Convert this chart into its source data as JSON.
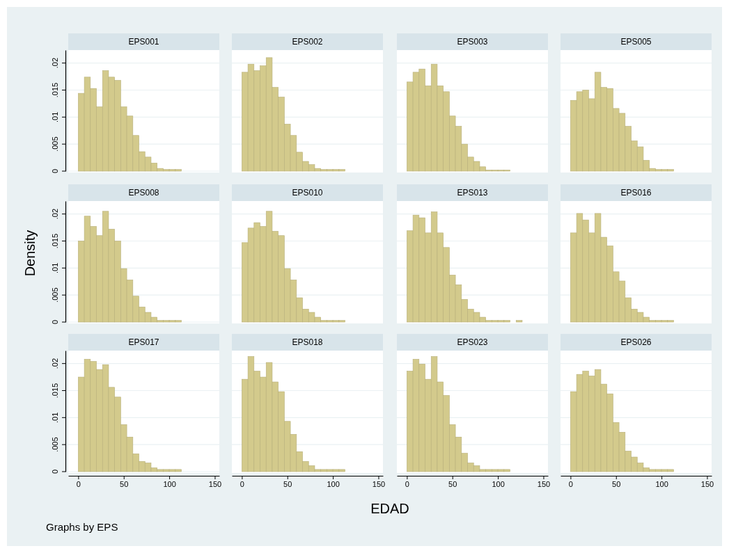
{
  "chart_data": [
    {
      "type": "histogram",
      "title": "EPS001",
      "bins": [
        0,
        6.67,
        13.33,
        20,
        26.67,
        33.33,
        40,
        46.67,
        53.33,
        60,
        66.67,
        73.33,
        80,
        86.67,
        93.33,
        100,
        106.67,
        113.33,
        120,
        126.67
      ],
      "values": [
        0.0144,
        0.0174,
        0.0153,
        0.0119,
        0.0186,
        0.0174,
        0.0168,
        0.0119,
        0.0102,
        0.0066,
        0.0036,
        0.0026,
        0.0015,
        0.0005,
        0.0003,
        0.0003,
        0.0003,
        0,
        0
      ],
      "color": "#d3ca8c",
      "xlim": [
        -11,
        155
      ],
      "ylim": [
        0,
        0.0224
      ],
      "xticks": [
        0,
        50,
        100,
        150
      ],
      "yticks": [
        0,
        {
          "value": 0.005,
          "label": ".005"
        },
        {
          "value": 0.01,
          "label": ".01"
        },
        {
          "value": 0.015,
          "label": ".015"
        },
        {
          "value": 0.02,
          "label": ".02"
        }
      ],
      "grid": "y",
      "tick_labels": "y"
    },
    {
      "type": "histogram",
      "title": "EPS002",
      "bins": [
        0,
        6.67,
        13.33,
        20,
        26.67,
        33.33,
        40,
        46.67,
        53.33,
        60,
        66.67,
        73.33,
        80,
        86.67,
        93.33,
        100,
        106.67,
        113.33,
        120,
        126.67
      ],
      "values": [
        0.0183,
        0.0198,
        0.0186,
        0.0195,
        0.021,
        0.0155,
        0.0137,
        0.0087,
        0.0066,
        0.0035,
        0.0018,
        0.0012,
        0.0005,
        0.0003,
        0.0003,
        0.0003,
        0.0003,
        0,
        0
      ],
      "color": "#d3ca8c",
      "xlim": [
        -11,
        155
      ],
      "ylim": [
        0,
        0.0224
      ],
      "xticks": [
        0,
        50,
        100,
        150
      ],
      "yticks": [
        0.005,
        0.01,
        0.015,
        0.02
      ],
      "grid": "y",
      "tick_labels": false
    },
    {
      "type": "histogram",
      "title": "EPS003",
      "bins": [
        0,
        6.67,
        13.33,
        20,
        26.67,
        33.33,
        40,
        46.67,
        53.33,
        60,
        66.67,
        73.33,
        80,
        86.67,
        93.33,
        100,
        106.67,
        113.33,
        120,
        126.67
      ],
      "values": [
        0.0165,
        0.0183,
        0.0189,
        0.0158,
        0.0198,
        0.0158,
        0.0147,
        0.0102,
        0.0083,
        0.005,
        0.0026,
        0.0018,
        0.0008,
        0.0002,
        0.0002,
        0.0002,
        0.0002,
        0,
        0
      ],
      "color": "#d3ca8c",
      "xlim": [
        -11,
        155
      ],
      "ylim": [
        0,
        0.0224
      ],
      "xticks": [
        0,
        50,
        100,
        150
      ],
      "yticks": [
        0.005,
        0.01,
        0.015,
        0.02
      ],
      "grid": "y",
      "tick_labels": false
    },
    {
      "type": "histogram",
      "title": "EPS005",
      "bins": [
        0,
        6.67,
        13.33,
        20,
        26.67,
        33.33,
        40,
        46.67,
        53.33,
        60,
        66.67,
        73.33,
        80,
        86.67,
        93.33,
        100,
        106.67,
        113.33,
        120,
        126.67
      ],
      "values": [
        0.0131,
        0.0147,
        0.015,
        0.0134,
        0.0183,
        0.0155,
        0.0153,
        0.0116,
        0.0107,
        0.0083,
        0.0056,
        0.0045,
        0.002,
        0.0005,
        0.0003,
        0.0003,
        0.0003,
        0,
        0
      ],
      "color": "#d3ca8c",
      "xlim": [
        -11,
        155
      ],
      "ylim": [
        0,
        0.0224
      ],
      "xticks": [
        0,
        50,
        100,
        150
      ],
      "yticks": [
        0.005,
        0.01,
        0.015,
        0.02
      ],
      "grid": "y",
      "tick_labels": false
    },
    {
      "type": "histogram",
      "title": "EPS008",
      "ylabel": "Density",
      "bins": [
        0,
        6.67,
        13.33,
        20,
        26.67,
        33.33,
        40,
        46.67,
        53.33,
        60,
        66.67,
        73.33,
        80,
        86.67,
        93.33,
        100,
        106.67,
        113.33,
        120,
        126.67
      ],
      "values": [
        0.015,
        0.0196,
        0.0177,
        0.016,
        0.0205,
        0.0172,
        0.015,
        0.0099,
        0.0078,
        0.0048,
        0.0028,
        0.0018,
        0.0009,
        0.0003,
        0.0003,
        0.0003,
        0.0003,
        0,
        0
      ],
      "color": "#d3ca8c",
      "xlim": [
        -11,
        155
      ],
      "ylim": [
        0,
        0.0224
      ],
      "xticks": [
        0,
        50,
        100,
        150
      ],
      "yticks": [
        0,
        {
          "value": 0.005,
          "label": ".005"
        },
        {
          "value": 0.01,
          "label": ".01"
        },
        {
          "value": 0.015,
          "label": ".015"
        },
        {
          "value": 0.02,
          "label": ".02"
        }
      ],
      "grid": "y",
      "tick_labels": "y"
    },
    {
      "type": "histogram",
      "title": "EPS010",
      "bins": [
        0,
        6.67,
        13.33,
        20,
        26.67,
        33.33,
        40,
        46.67,
        53.33,
        60,
        66.67,
        73.33,
        80,
        86.67,
        93.33,
        100,
        106.67,
        113.33,
        120,
        126.67
      ],
      "values": [
        0.0147,
        0.0174,
        0.0184,
        0.0177,
        0.0205,
        0.0168,
        0.016,
        0.0099,
        0.0078,
        0.0045,
        0.0024,
        0.0018,
        0.0009,
        0.0003,
        0.0003,
        0.0003,
        0.0003,
        0,
        0
      ],
      "color": "#d3ca8c",
      "xlim": [
        -11,
        155
      ],
      "ylim": [
        0,
        0.0224
      ],
      "xticks": [
        0,
        50,
        100,
        150
      ],
      "yticks": [
        0.005,
        0.01,
        0.015,
        0.02
      ],
      "grid": "y",
      "tick_labels": false
    },
    {
      "type": "histogram",
      "title": "EPS013",
      "bins": [
        0,
        6.67,
        13.33,
        20,
        26.67,
        33.33,
        40,
        46.67,
        53.33,
        60,
        66.67,
        73.33,
        80,
        86.67,
        93.33,
        100,
        106.67,
        113.33,
        120,
        126.67
      ],
      "values": [
        0.0169,
        0.0198,
        0.0193,
        0.0165,
        0.0204,
        0.0165,
        0.0138,
        0.0087,
        0.0069,
        0.0042,
        0.0024,
        0.0018,
        0.0009,
        0.0003,
        0.0003,
        0.0003,
        0.0003,
        0,
        0.0003
      ],
      "color": "#d3ca8c",
      "xlim": [
        -11,
        155
      ],
      "ylim": [
        0,
        0.0224
      ],
      "xticks": [
        0,
        50,
        100,
        150
      ],
      "yticks": [
        0.005,
        0.01,
        0.015,
        0.02
      ],
      "grid": "y",
      "tick_labels": false
    },
    {
      "type": "histogram",
      "title": "EPS016",
      "bins": [
        0,
        6.67,
        13.33,
        20,
        26.67,
        33.33,
        40,
        46.67,
        53.33,
        60,
        66.67,
        73.33,
        80,
        86.67,
        93.33,
        100,
        106.67,
        113.33,
        120,
        126.67
      ],
      "values": [
        0.0165,
        0.0201,
        0.0189,
        0.0165,
        0.0201,
        0.0157,
        0.0141,
        0.0093,
        0.0076,
        0.0045,
        0.0024,
        0.0018,
        0.0009,
        0.0003,
        0.0003,
        0.0003,
        0.0003,
        0,
        0
      ],
      "color": "#d3ca8c",
      "xlim": [
        -11,
        155
      ],
      "ylim": [
        0,
        0.0224
      ],
      "xticks": [
        0,
        50,
        100,
        150
      ],
      "yticks": [
        0.005,
        0.01,
        0.015,
        0.02
      ],
      "grid": "y",
      "tick_labels": false
    },
    {
      "type": "histogram",
      "title": "EPS017",
      "annotations": [
        "Graphs by EPS"
      ],
      "bins": [
        0,
        6.67,
        13.33,
        20,
        26.67,
        33.33,
        40,
        46.67,
        53.33,
        60,
        66.67,
        73.33,
        80,
        86.67,
        93.33,
        100,
        106.67,
        113.33,
        120,
        126.67
      ],
      "values": [
        0.0175,
        0.0208,
        0.0204,
        0.0189,
        0.0198,
        0.0156,
        0.0138,
        0.0087,
        0.0064,
        0.0033,
        0.0019,
        0.0016,
        0.0007,
        0.0004,
        0.0004,
        0.0004,
        0.0004,
        0,
        0
      ],
      "color": "#d3ca8c",
      "xlim": [
        -11,
        155
      ],
      "ylim": [
        0,
        0.0224
      ],
      "xticks": [
        0,
        50,
        100,
        150
      ],
      "yticks": [
        0,
        {
          "value": 0.005,
          "label": ".005"
        },
        {
          "value": 0.01,
          "label": ".01"
        },
        {
          "value": 0.015,
          "label": ".015"
        },
        {
          "value": 0.02,
          "label": ".02"
        }
      ],
      "grid": "y"
    },
    {
      "type": "histogram",
      "title": "EPS018",
      "bins": [
        0,
        6.67,
        13.33,
        20,
        26.67,
        33.33,
        40,
        46.67,
        53.33,
        60,
        66.67,
        73.33,
        80,
        86.67,
        93.33,
        100,
        106.67,
        113.33,
        120,
        126.67
      ],
      "values": [
        0.0171,
        0.0213,
        0.0186,
        0.0175,
        0.0202,
        0.0166,
        0.0148,
        0.0093,
        0.0069,
        0.0037,
        0.0019,
        0.0011,
        0.0004,
        0.0004,
        0.0004,
        0.0004,
        0.0004,
        0,
        0
      ],
      "color": "#d3ca8c",
      "xlim": [
        -11,
        155
      ],
      "ylim": [
        0,
        0.0224
      ],
      "xticks": [
        0,
        50,
        100,
        150
      ],
      "yticks": [
        0.005,
        0.01,
        0.015,
        0.02
      ],
      "grid": "y",
      "tick_labels": "x"
    },
    {
      "type": "histogram",
      "title": "EPS023",
      "xlabel": "EDAD",
      "bins": [
        0,
        6.67,
        13.33,
        20,
        26.67,
        33.33,
        40,
        46.67,
        53.33,
        60,
        66.67,
        73.33,
        80,
        86.67,
        93.33,
        100,
        106.67,
        113.33,
        120,
        126.67
      ],
      "values": [
        0.0186,
        0.0208,
        0.0199,
        0.0171,
        0.0213,
        0.0166,
        0.0141,
        0.0087,
        0.0064,
        0.0034,
        0.0016,
        0.0011,
        0.0004,
        0.0004,
        0.0004,
        0.0004,
        0.0004,
        0,
        0
      ],
      "color": "#d3ca8c",
      "xlim": [
        -11,
        155
      ],
      "ylim": [
        0,
        0.0224
      ],
      "xticks": [
        0,
        50,
        100,
        150
      ],
      "yticks": [
        0.005,
        0.01,
        0.015,
        0.02
      ],
      "grid": "y",
      "tick_labels": "x"
    },
    {
      "type": "histogram",
      "title": "EPS026",
      "bins": [
        0,
        6.67,
        13.33,
        20,
        26.67,
        33.33,
        40,
        46.67,
        53.33,
        60,
        66.67,
        73.33,
        80,
        86.67,
        93.33,
        100,
        106.67,
        113.33,
        120,
        126.67
      ],
      "values": [
        0.0148,
        0.018,
        0.0186,
        0.0177,
        0.0189,
        0.0162,
        0.0144,
        0.0091,
        0.0073,
        0.0038,
        0.0027,
        0.0016,
        0.0007,
        0.0004,
        0.0004,
        0.0004,
        0.0004,
        0,
        0
      ],
      "color": "#d3ca8c",
      "xlim": [
        -11,
        155
      ],
      "ylim": [
        0,
        0.0224
      ],
      "xticks": [
        0,
        50,
        100,
        150
      ],
      "yticks": [
        0.005,
        0.01,
        0.015,
        0.02
      ],
      "grid": "y",
      "tick_labels": "x"
    }
  ]
}
